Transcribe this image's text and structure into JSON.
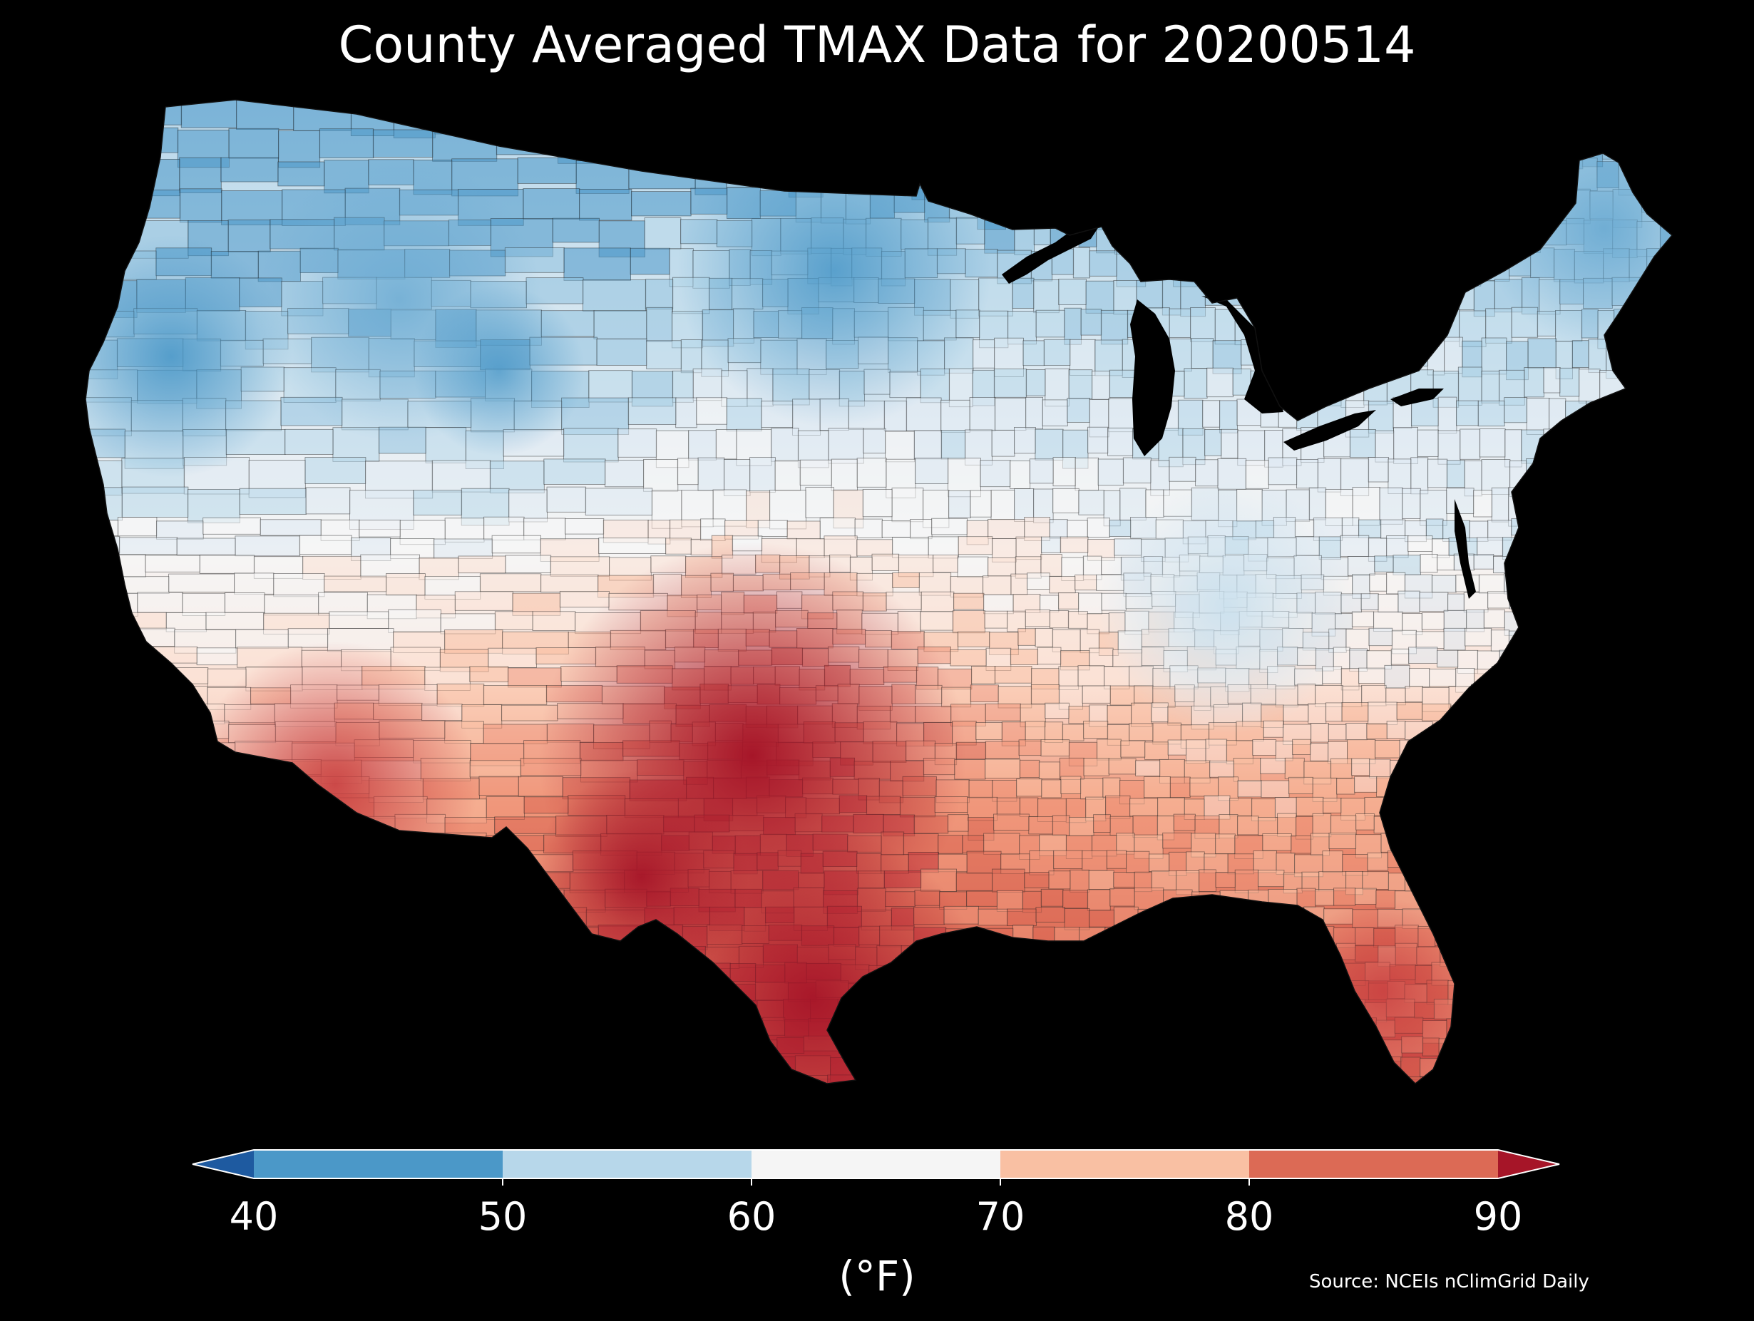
{
  "title": "County Averaged TMAX Data for 20200514",
  "colorbar": {
    "ticks": [
      "40",
      "50",
      "60",
      "70",
      "80",
      "90"
    ],
    "unit": "(°F)",
    "bins": [
      {
        "from": 40,
        "to": 50,
        "color": "#4b98c8"
      },
      {
        "from": 50,
        "to": 60,
        "color": "#b7d7ea"
      },
      {
        "from": 60,
        "to": 70,
        "color": "#f5f5f5"
      },
      {
        "from": 70,
        "to": 80,
        "color": "#f9c0a3"
      },
      {
        "from": 80,
        "to": 90,
        "color": "#dc6a55"
      }
    ],
    "under_color": "#1e5aa0",
    "over_color": "#a61528"
  },
  "source": "Source: NCEIs nClimGrid Daily",
  "map": {
    "palette": [
      "#4b98c8",
      "#8fc1de",
      "#b7d7ea",
      "#deeaf2",
      "#f5f5f5",
      "#fbe2d6",
      "#f9c0a3",
      "#f0987b",
      "#dc6a55",
      "#c73d3f",
      "#a61528"
    ],
    "border_color": "#222222"
  }
}
